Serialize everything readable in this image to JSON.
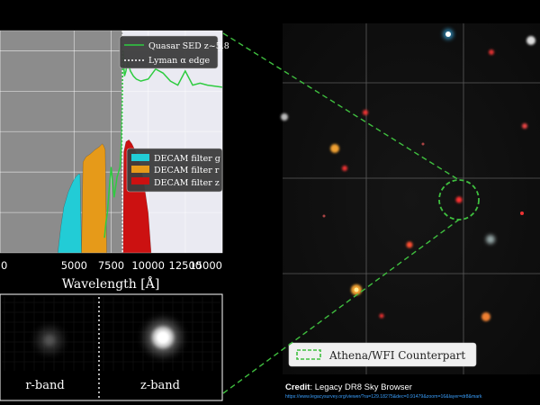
{
  "chart_data": {
    "type": "area",
    "xlabel": "Wavelength [Å]",
    "xlim": [
      0,
      15000
    ],
    "x_ticks": [
      "0",
      "5000",
      "7500",
      "10000",
      "12500",
      "15000"
    ],
    "tick_values": [
      0,
      5000,
      7500,
      10000,
      12500,
      15000
    ],
    "y_ticks_shown": false,
    "grid": true,
    "legend_placement": "top-right",
    "legend": {
      "sed": "Quasar SED z~5.8",
      "lyman": "Lyman α edge"
    },
    "lyman_edge_x": 8270,
    "series": [
      {
        "name": "Quasar SED z~5.8",
        "color": "#2ecc40",
        "x": [
          7050,
          7150,
          7250,
          7350,
          7500,
          7600,
          7700,
          7800,
          7900,
          8000,
          8100,
          8200,
          8250,
          8300,
          8400,
          8500,
          8600,
          8700,
          8800,
          9000,
          9200,
          9500,
          10000,
          10500,
          11000,
          11500,
          12000,
          12500,
          13000,
          13500,
          14000,
          14500,
          15000
        ],
        "y": [
          0.15,
          0.3,
          0.4,
          0.6,
          0.85,
          0.7,
          0.55,
          0.65,
          0.75,
          0.8,
          0.85,
          1.1,
          1.5,
          2.0,
          1.75,
          1.8,
          1.9,
          1.85,
          1.8,
          1.75,
          1.72,
          1.7,
          1.72,
          1.82,
          1.78,
          1.7,
          1.66,
          1.8,
          1.66,
          1.68,
          1.66,
          1.65,
          1.64
        ]
      }
    ],
    "filters": [
      {
        "name": "DECAM filter g",
        "color": "#22ccd6",
        "x": [
          3900,
          4100,
          4300,
          4600,
          4900,
          5100,
          5300,
          5400,
          5500
        ],
        "y": [
          0,
          0.25,
          0.45,
          0.6,
          0.7,
          0.75,
          0.78,
          0.78,
          0
        ]
      },
      {
        "name": "DECAM filter r",
        "color": "#e69a19",
        "x": [
          5500,
          5600,
          5800,
          6100,
          6400,
          6700,
          6900,
          7000,
          7100,
          7200
        ],
        "y": [
          0,
          0.9,
          0.95,
          0.98,
          1.02,
          1.05,
          1.08,
          1.06,
          1.02,
          0
        ]
      },
      {
        "name": "DECAM filter z",
        "color": "#cc1111",
        "x": [
          8300,
          8350,
          8500,
          8700,
          8900,
          9100,
          9300,
          9500,
          9700,
          10000,
          10200
        ],
        "y": [
          0,
          1.0,
          1.1,
          1.12,
          1.08,
          1.02,
          0.96,
          0.85,
          0.7,
          0.4,
          0
        ]
      }
    ],
    "ylim": [
      0,
      2.2
    ]
  },
  "cutouts": {
    "r_label": "r-band",
    "z_label": "z-band"
  },
  "sky_image": {
    "legend_label": "Athena/WFI Counterpart",
    "credit_bold": "Credit",
    "credit_text": ": Legacy DR8 Sky Browser",
    "credit_url": "https://www.legacysurvey.org/viewer/?ra=129.18275&dec=0.91479&zoom=16&layer=dr8&mark"
  }
}
